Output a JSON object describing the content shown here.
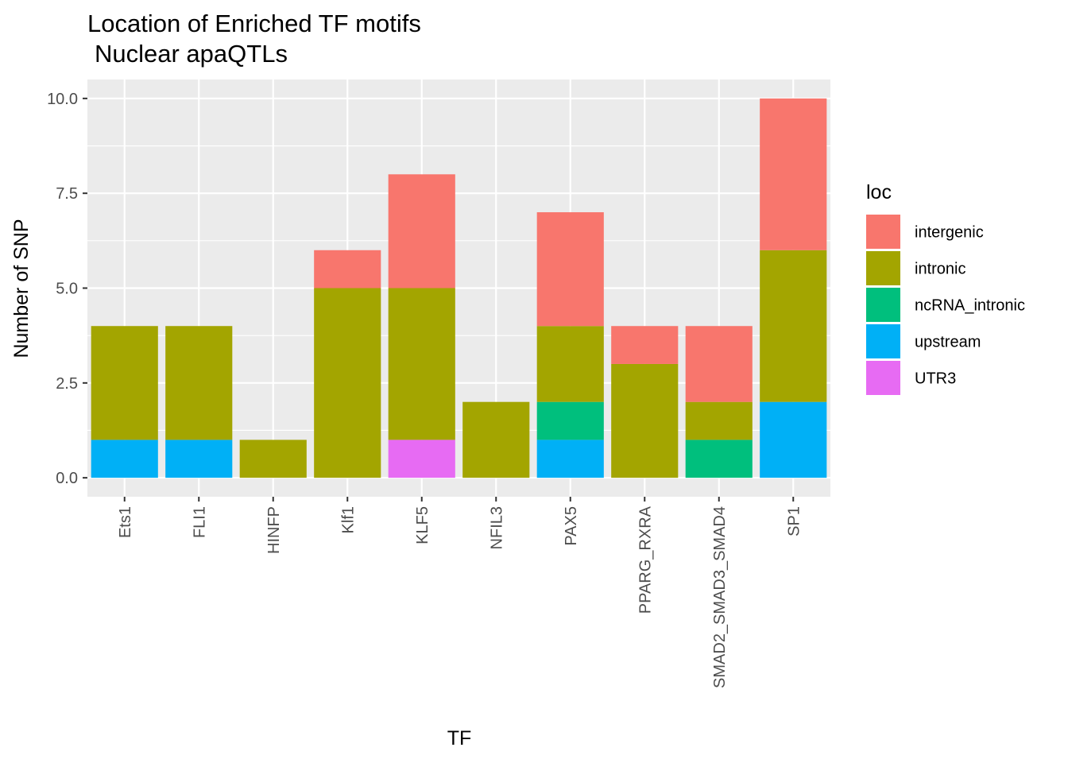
{
  "chart_data": {
    "type": "bar",
    "stacked": true,
    "title": "Location of Enriched TF motifs",
    "subtitle": "Nuclear apaQTLs",
    "xlabel": "TF",
    "ylabel": "Number of SNP",
    "ylim": [
      -0.5,
      10.5
    ],
    "yticks": [
      0,
      2.5,
      5,
      7.5,
      10
    ],
    "ytick_labels": [
      "0.0",
      "2.5",
      "5.0",
      "7.5",
      "10.0"
    ],
    "grid": true,
    "legend_title": "loc",
    "legend_position": "right",
    "categories": [
      "Ets1",
      "FLI1",
      "HINFP",
      "Klf1",
      "KLF5",
      "NFIL3",
      "PAX5",
      "PPARG_RXRA",
      "SMAD2_SMAD3_SMAD4",
      "SP1"
    ],
    "series": [
      {
        "name": "intergenic",
        "color": "#F8766D",
        "values": [
          0,
          0,
          0,
          1,
          3,
          0,
          3,
          1,
          2,
          4
        ]
      },
      {
        "name": "intronic",
        "color": "#A3A500",
        "values": [
          3,
          3,
          1,
          5,
          4,
          2,
          2,
          3,
          1,
          4
        ]
      },
      {
        "name": "ncRNA_intronic",
        "color": "#00BF7D",
        "values": [
          0,
          0,
          0,
          0,
          0,
          0,
          1,
          0,
          1,
          0
        ]
      },
      {
        "name": "upstream",
        "color": "#00B0F6",
        "values": [
          1,
          1,
          0,
          0,
          0,
          0,
          1,
          0,
          0,
          2
        ]
      },
      {
        "name": "UTR3",
        "color": "#E76BF3",
        "values": [
          0,
          0,
          0,
          0,
          1,
          0,
          0,
          0,
          0,
          0
        ]
      }
    ]
  }
}
